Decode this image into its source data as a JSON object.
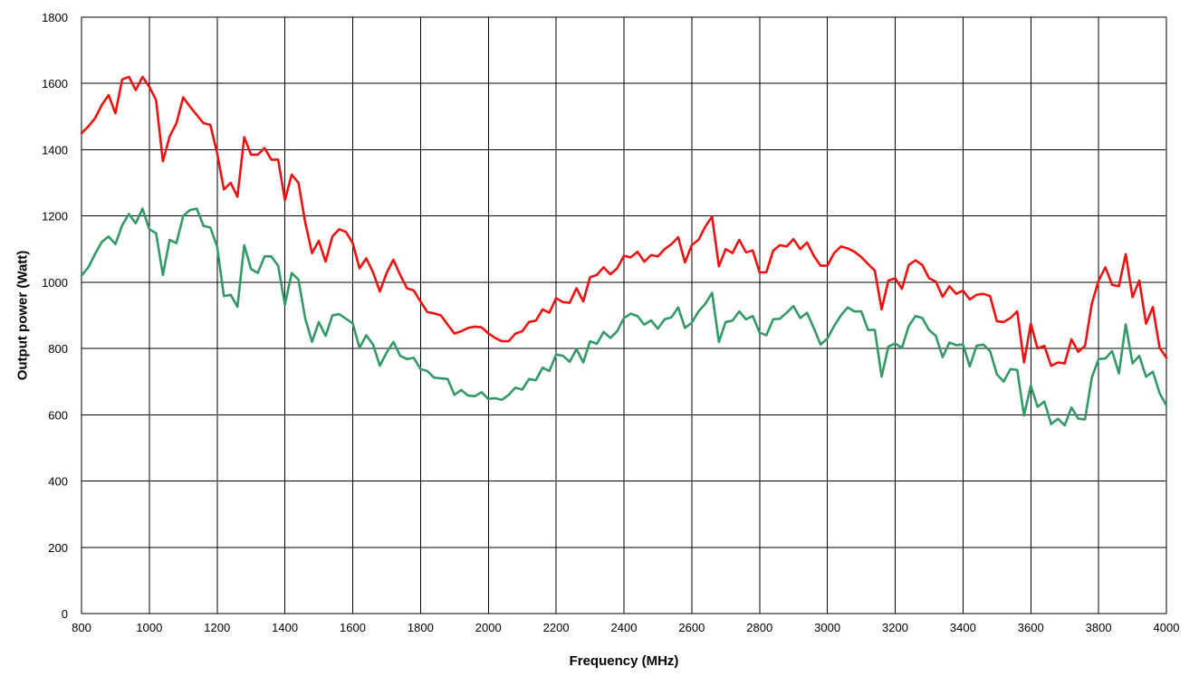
{
  "chart_data": {
    "type": "line",
    "title": "",
    "xlabel": "Frequency (MHz)",
    "ylabel": "Output power (Watt)",
    "xlim": [
      800,
      4000
    ],
    "ylim": [
      0,
      1800
    ],
    "x_ticks": [
      800,
      1000,
      1200,
      1400,
      1600,
      1800,
      2000,
      2200,
      2400,
      2600,
      2800,
      3000,
      3200,
      3400,
      3600,
      3800,
      4000
    ],
    "y_ticks": [
      0,
      200,
      400,
      600,
      800,
      1000,
      1200,
      1400,
      1600,
      1800
    ],
    "grid": true,
    "legend": "none",
    "x": [
      800,
      820,
      840,
      860,
      880,
      900,
      920,
      940,
      960,
      980,
      1000,
      1020,
      1040,
      1060,
      1080,
      1100,
      1120,
      1140,
      1160,
      1180,
      1200,
      1220,
      1240,
      1260,
      1280,
      1300,
      1320,
      1340,
      1360,
      1380,
      1400,
      1420,
      1440,
      1460,
      1480,
      1500,
      1520,
      1540,
      1560,
      1580,
      1600,
      1620,
      1640,
      1660,
      1680,
      1700,
      1720,
      1740,
      1760,
      1780,
      1800,
      1820,
      1840,
      1860,
      1880,
      1900,
      1920,
      1940,
      1960,
      1980,
      2000,
      2020,
      2040,
      2060,
      2080,
      2100,
      2120,
      2140,
      2160,
      2180,
      2200,
      2220,
      2240,
      2260,
      2280,
      2300,
      2320,
      2340,
      2360,
      2380,
      2400,
      2420,
      2440,
      2460,
      2480,
      2500,
      2520,
      2540,
      2560,
      2580,
      2600,
      2620,
      2640,
      2660,
      2680,
      2700,
      2720,
      2740,
      2760,
      2780,
      2800,
      2820,
      2840,
      2860,
      2880,
      2900,
      2920,
      2940,
      2960,
      2980,
      3000,
      3020,
      3040,
      3060,
      3080,
      3100,
      3120,
      3140,
      3160,
      3180,
      3200,
      3220,
      3240,
      3260,
      3280,
      3300,
      3320,
      3340,
      3360,
      3380,
      3400,
      3420,
      3440,
      3460,
      3480,
      3500,
      3520,
      3540,
      3560,
      3580,
      3600,
      3620,
      3640,
      3660,
      3680,
      3700,
      3720,
      3740,
      3760,
      3780,
      3800,
      3820,
      3840,
      3860,
      3880,
      3900,
      3920,
      3940,
      3960,
      3980,
      4000
    ],
    "series": [
      {
        "color": "#ee1111",
        "values": [
          1450,
          1470,
          1495,
          1535,
          1565,
          1510,
          1612,
          1620,
          1580,
          1620,
          1590,
          1550,
          1365,
          1440,
          1480,
          1558,
          1530,
          1505,
          1480,
          1475,
          1390,
          1280,
          1300,
          1258,
          1438,
          1385,
          1385,
          1405,
          1370,
          1370,
          1248,
          1325,
          1300,
          1180,
          1088,
          1125,
          1062,
          1138,
          1160,
          1152,
          1118,
          1042,
          1072,
          1030,
          972,
          1028,
          1068,
          1022,
          982,
          975,
          942,
          910,
          906,
          900,
          872,
          845,
          852,
          862,
          866,
          864,
          846,
          832,
          822,
          822,
          845,
          852,
          880,
          884,
          918,
          908,
          952,
          940,
          938,
          982,
          942,
          1015,
          1022,
          1045,
          1024,
          1042,
          1080,
          1075,
          1092,
          1062,
          1082,
          1078,
          1100,
          1115,
          1136,
          1060,
          1112,
          1128,
          1168,
          1198,
          1048,
          1100,
          1088,
          1128,
          1090,
          1096,
          1030,
          1030,
          1095,
          1112,
          1108,
          1130,
          1100,
          1120,
          1080,
          1050,
          1050,
          1088,
          1108,
          1102,
          1092,
          1076,
          1055,
          1035,
          918,
          1005,
          1012,
          980,
          1052,
          1066,
          1052,
          1012,
          1002,
          956,
          988,
          965,
          975,
          948,
          962,
          965,
          958,
          882,
          880,
          892,
          912,
          758,
          875,
          800,
          808,
          748,
          758,
          755,
          828,
          790,
          808,
          935,
          1005,
          1045,
          992,
          988,
          1085,
          955,
          1005,
          875,
          925,
          802,
          772
        ]
      },
      {
        "color": "#339966",
        "values": [
          1020,
          1045,
          1085,
          1122,
          1138,
          1115,
          1172,
          1206,
          1178,
          1222,
          1160,
          1148,
          1022,
          1128,
          1118,
          1200,
          1218,
          1222,
          1170,
          1165,
          1108,
          958,
          962,
          926,
          1112,
          1040,
          1028,
          1078,
          1078,
          1050,
          932,
          1028,
          1008,
          890,
          820,
          880,
          838,
          900,
          904,
          890,
          876,
          802,
          840,
          812,
          748,
          788,
          820,
          778,
          768,
          772,
          738,
          732,
          712,
          710,
          708,
          660,
          675,
          658,
          656,
          668,
          648,
          650,
          645,
          660,
          682,
          676,
          708,
          704,
          742,
          732,
          782,
          778,
          760,
          798,
          758,
          822,
          814,
          850,
          832,
          852,
          892,
          905,
          898,
          872,
          885,
          860,
          888,
          894,
          924,
          862,
          878,
          912,
          935,
          968,
          820,
          880,
          884,
          912,
          888,
          898,
          848,
          840,
          888,
          890,
          908,
          928,
          892,
          908,
          862,
          812,
          830,
          868,
          900,
          924,
          912,
          912,
          856,
          856,
          715,
          806,
          815,
          802,
          868,
          898,
          892,
          856,
          838,
          774,
          818,
          810,
          812,
          746,
          808,
          812,
          792,
          722,
          700,
          738,
          735,
          598,
          688,
          624,
          640,
          572,
          588,
          568,
          622,
          588,
          586,
          712,
          768,
          770,
          792,
          725,
          873,
          755,
          778,
          715,
          730,
          665,
          628
        ]
      }
    ]
  }
}
